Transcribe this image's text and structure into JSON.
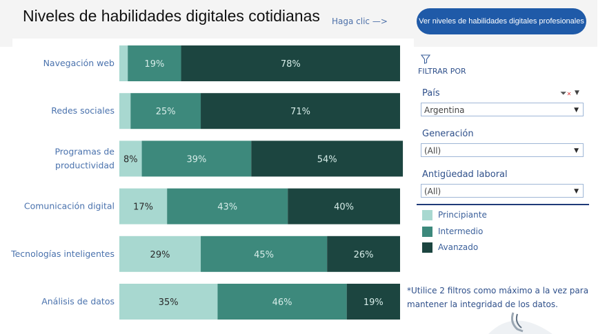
{
  "header": {
    "title": "Niveles de habilidades digitales cotidianas",
    "hint": "Haga clic —>",
    "pro_button": "Ver niveles de habilidades digitales profesionales"
  },
  "filters": {
    "heading": "FILTRAR POR",
    "pais": {
      "label": "País",
      "value": "Argentina"
    },
    "generacion": {
      "label": "Generación",
      "value": "(All)"
    },
    "antiguedad": {
      "label": "Antigüedad laboral",
      "value": "(All)"
    }
  },
  "note": "*Utilice 2 filtros como máximo a la vez para mantener la integridad de los datos.",
  "colors": {
    "principiante": "#a8d8d0",
    "intermedio": "#3d897c",
    "avanzado": "#1c4540"
  },
  "chart_data": {
    "type": "bar",
    "orientation": "horizontal",
    "stacked": true,
    "title": "Niveles de habilidades digitales cotidianas",
    "categories": [
      "Navegación web",
      "Redes sociales",
      "Programas de productividad",
      "Comunicación digital",
      "Tecnologías inteligentes",
      "Análisis de datos"
    ],
    "category_lines": [
      [
        "Navegación web"
      ],
      [
        "Redes sociales"
      ],
      [
        "Programas de",
        "productividad"
      ],
      [
        "Comunicación digital"
      ],
      [
        "Tecnologías inteligentes"
      ],
      [
        "Análisis de datos"
      ]
    ],
    "series": [
      {
        "name": "Principiante",
        "values": [
          3,
          4,
          8,
          17,
          29,
          35
        ],
        "labels": [
          "",
          "",
          "8%",
          "17%",
          "29%",
          "35%"
        ]
      },
      {
        "name": "Intermedio",
        "values": [
          19,
          25,
          39,
          43,
          45,
          46
        ],
        "labels": [
          "19%",
          "25%",
          "39%",
          "43%",
          "45%",
          "46%"
        ]
      },
      {
        "name": "Avanzado",
        "values": [
          78,
          71,
          54,
          40,
          26,
          19
        ],
        "labels": [
          "78%",
          "71%",
          "54%",
          "40%",
          "26%",
          "19%"
        ]
      }
    ],
    "xlim": [
      0,
      100
    ],
    "legend": "right"
  }
}
